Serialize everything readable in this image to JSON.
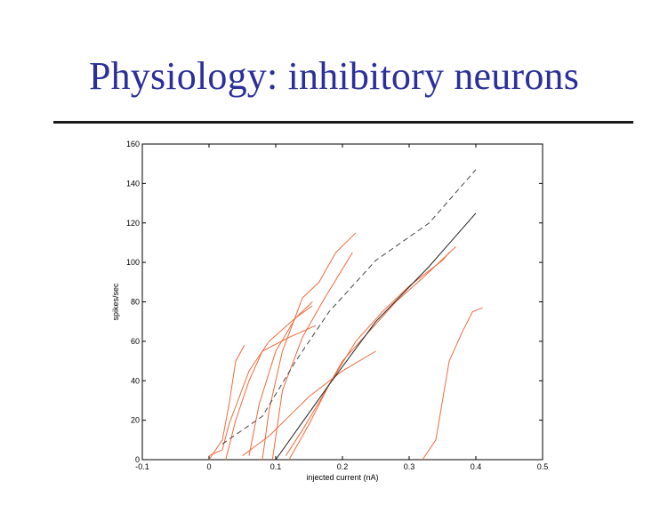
{
  "slide": {
    "title": "Physiology: inhibitory neurons"
  },
  "chart_data": {
    "type": "line",
    "title": "",
    "xlabel": "injected current (nA)",
    "ylabel": "spikes/sec",
    "xlim": [
      -0.1,
      0.5
    ],
    "ylim": [
      0,
      160
    ],
    "xticks": [
      -0.1,
      0,
      0.1,
      0.2,
      0.3,
      0.4,
      0.5
    ],
    "yticks": [
      0,
      20,
      40,
      60,
      80,
      100,
      120,
      140,
      160
    ],
    "xtick_labels": [
      "-0.1",
      "0",
      "0.1",
      "0.2",
      "0.3",
      "0.4",
      "0.5"
    ],
    "ytick_labels": [
      "0",
      "20",
      "40",
      "60",
      "80",
      "100",
      "120",
      "140",
      "160"
    ],
    "grid": false,
    "series": [
      {
        "color": "#ef6a3a",
        "dash": "",
        "points": [
          [
            0,
            0
          ],
          [
            0.02,
            10
          ],
          [
            0.03,
            28
          ],
          [
            0.04,
            50
          ],
          [
            0.053,
            58
          ]
        ]
      },
      {
        "color": "#ef6a3a",
        "dash": "",
        "points": [
          [
            0,
            2
          ],
          [
            0.02,
            5
          ],
          [
            0.03,
            18
          ],
          [
            0.06,
            45
          ],
          [
            0.09,
            60
          ],
          [
            0.13,
            72
          ],
          [
            0.155,
            78
          ]
        ]
      },
      {
        "color": "#ef6a3a",
        "dash": "",
        "points": [
          [
            0.025,
            0
          ],
          [
            0.04,
            20
          ],
          [
            0.06,
            40
          ],
          [
            0.08,
            55
          ],
          [
            0.12,
            62
          ],
          [
            0.16,
            68
          ]
        ]
      },
      {
        "color": "#ef6a3a",
        "dash": "",
        "points": [
          [
            0.06,
            2
          ],
          [
            0.075,
            28
          ],
          [
            0.1,
            55
          ],
          [
            0.13,
            72
          ],
          [
            0.155,
            80
          ]
        ]
      },
      {
        "color": "#ef6a3a",
        "dash": "",
        "points": [
          [
            0.08,
            0
          ],
          [
            0.09,
            25
          ],
          [
            0.11,
            55
          ],
          [
            0.14,
            82
          ],
          [
            0.165,
            90
          ],
          [
            0.19,
            105
          ],
          [
            0.22,
            115
          ]
        ]
      },
      {
        "color": "#ef6a3a",
        "dash": "",
        "points": [
          [
            0.095,
            0
          ],
          [
            0.11,
            35
          ],
          [
            0.14,
            62
          ],
          [
            0.17,
            80
          ],
          [
            0.215,
            105
          ]
        ]
      },
      {
        "color": "#ef6a3a",
        "dash": "",
        "points": [
          [
            0.05,
            2
          ],
          [
            0.09,
            12
          ],
          [
            0.12,
            22
          ],
          [
            0.15,
            32
          ],
          [
            0.2,
            45
          ],
          [
            0.25,
            55
          ]
        ]
      },
      {
        "color": "#ef6a3a",
        "dash": "",
        "points": [
          [
            0.115,
            2
          ],
          [
            0.14,
            15
          ],
          [
            0.17,
            32
          ],
          [
            0.2,
            50
          ],
          [
            0.24,
            65
          ],
          [
            0.28,
            80
          ],
          [
            0.32,
            92
          ],
          [
            0.37,
            108
          ]
        ]
      },
      {
        "color": "#ef6a3a",
        "dash": "",
        "points": [
          [
            0.12,
            0
          ],
          [
            0.15,
            18
          ],
          [
            0.18,
            38
          ],
          [
            0.22,
            60
          ],
          [
            0.26,
            75
          ],
          [
            0.3,
            88
          ],
          [
            0.35,
            101
          ],
          [
            0.36,
            105
          ]
        ]
      },
      {
        "color": "#ef6a3a",
        "dash": "",
        "points": [
          [
            0.32,
            0
          ],
          [
            0.34,
            10
          ],
          [
            0.36,
            50
          ],
          [
            0.38,
            65
          ],
          [
            0.395,
            75
          ],
          [
            0.41,
            77
          ]
        ]
      },
      {
        "color": "#222222",
        "dash": "",
        "points": [
          [
            0.1,
            0
          ],
          [
            0.18,
            38
          ],
          [
            0.25,
            70
          ],
          [
            0.33,
            98
          ],
          [
            0.4,
            125
          ]
        ]
      },
      {
        "color": "#444444",
        "dash": "6,4",
        "points": [
          [
            0.02,
            8
          ],
          [
            0.08,
            22
          ],
          [
            0.13,
            50
          ],
          [
            0.18,
            75
          ],
          [
            0.25,
            101
          ],
          [
            0.33,
            120
          ],
          [
            0.4,
            147
          ]
        ]
      }
    ]
  }
}
